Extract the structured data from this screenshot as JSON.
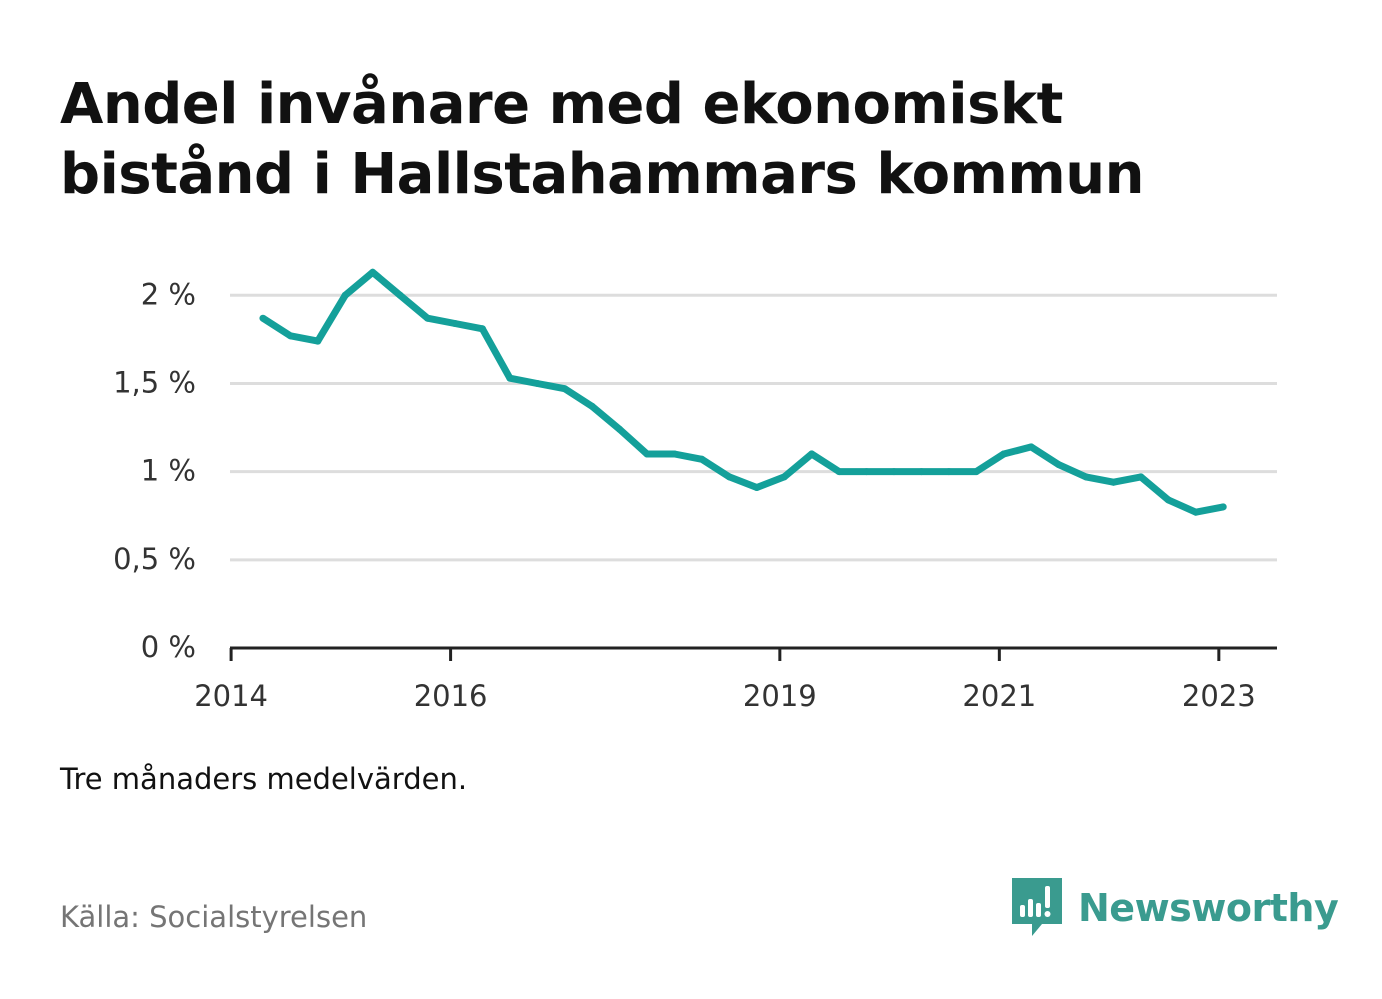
{
  "title_lines": [
    "Andel invånare med ekonomiskt",
    "bistånd i Hallstahammars kommun"
  ],
  "note": "Tre månaders medelvärden.",
  "source": "Källa: Socialstyrelsen",
  "brand": {
    "name": "Newsworthy",
    "color": "#3a9b8f"
  },
  "chart_data": {
    "type": "line",
    "line_color": "#14a09a",
    "grid": true,
    "y_ticks": [
      0,
      0.5,
      1,
      1.5,
      2
    ],
    "y_tick_labels": [
      "0 %",
      "0,5 %",
      "1 %",
      "1,5 %",
      "2 %"
    ],
    "x_ticks": [
      2014,
      2016,
      2019,
      2021,
      2023
    ],
    "x_tick_labels": [
      "2014",
      "2016",
      "2019",
      "2021",
      "2023"
    ],
    "xlim": [
      2013.99,
      2023.53
    ],
    "ylim": [
      0,
      2.2
    ],
    "x": [
      2014.29,
      2014.54,
      2014.79,
      2015.04,
      2015.29,
      2015.54,
      2015.79,
      2016.04,
      2016.29,
      2016.54,
      2016.79,
      2017.04,
      2017.29,
      2017.54,
      2017.79,
      2018.04,
      2018.29,
      2018.54,
      2018.79,
      2019.04,
      2019.29,
      2019.54,
      2019.79,
      2020.04,
      2020.29,
      2020.54,
      2020.79,
      2021.04,
      2021.29,
      2021.54,
      2021.79,
      2022.04,
      2022.29,
      2022.54,
      2022.79,
      2023.04
    ],
    "series": [
      {
        "values": [
          1.87,
          1.77,
          1.74,
          2.0,
          2.13,
          2.0,
          1.87,
          1.84,
          1.81,
          1.53,
          1.5,
          1.47,
          1.37,
          1.24,
          1.1,
          1.1,
          1.07,
          0.97,
          0.91,
          0.97,
          1.1,
          1.0,
          1.0,
          1.0,
          1.0,
          1.0,
          1.0,
          1.1,
          1.14,
          1.04,
          0.97,
          0.94,
          0.97,
          0.84,
          0.77,
          0.8
        ]
      }
    ]
  }
}
